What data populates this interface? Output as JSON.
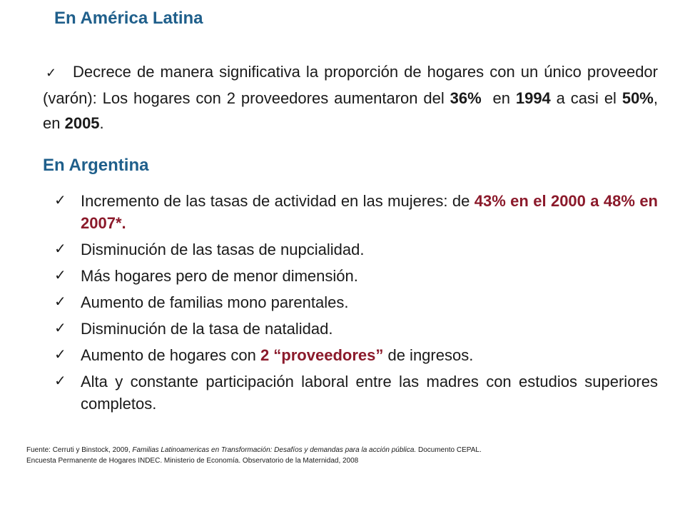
{
  "latam": {
    "heading": "En América Latina",
    "check_icon": "check-icon",
    "text_1": "Decrece de manera significativa la proporción de hogares con un único proveedor (varón): Los hogares con 2 proveedores aumentaron del ",
    "bold_1": "36%",
    "text_2": "  en ",
    "bold_2": "1994",
    "text_3": " a casi el ",
    "bold_3": "50%",
    "text_4": ", en ",
    "bold_4": "2005",
    "text_5": "."
  },
  "argentina": {
    "heading": "En Argentina",
    "items": [
      {
        "text": "Incremento de las tasas de actividad en las mujeres: de ",
        "highlight": "43% en el 2000 a 48% en 2007*."
      },
      {
        "text": "Disminución de las tasas de nupcialidad."
      },
      {
        "text": "Más hogares pero de menor dimensión."
      },
      {
        "text": "Aumento de familias mono parentales."
      },
      {
        "text": "Disminución de la tasa de natalidad."
      },
      {
        "text": "Aumento de hogares con ",
        "highlight": "2 “proveedores”",
        "text_after": " de ingresos."
      },
      {
        "text": "Alta y constante participación laboral entre las madres con estudios superiores completos."
      }
    ]
  },
  "sources": {
    "line1_prefix": "Fuente: Cerruti y Binstock, 2009, ",
    "line1_italic": "Familias Latinoamericas  en  Transformación:  Desafíos y demandas para la acción pública.",
    "line1_suffix": " Documento CEPAL.",
    "line2": "Encuesta Permanente de Hogares INDEC.  Ministerio de Economía.  Observatorio de la Maternidad,  2008"
  },
  "colors": {
    "heading": "#1f5f8b",
    "highlight": "#8b1a2b",
    "text": "#1a1a1a"
  }
}
